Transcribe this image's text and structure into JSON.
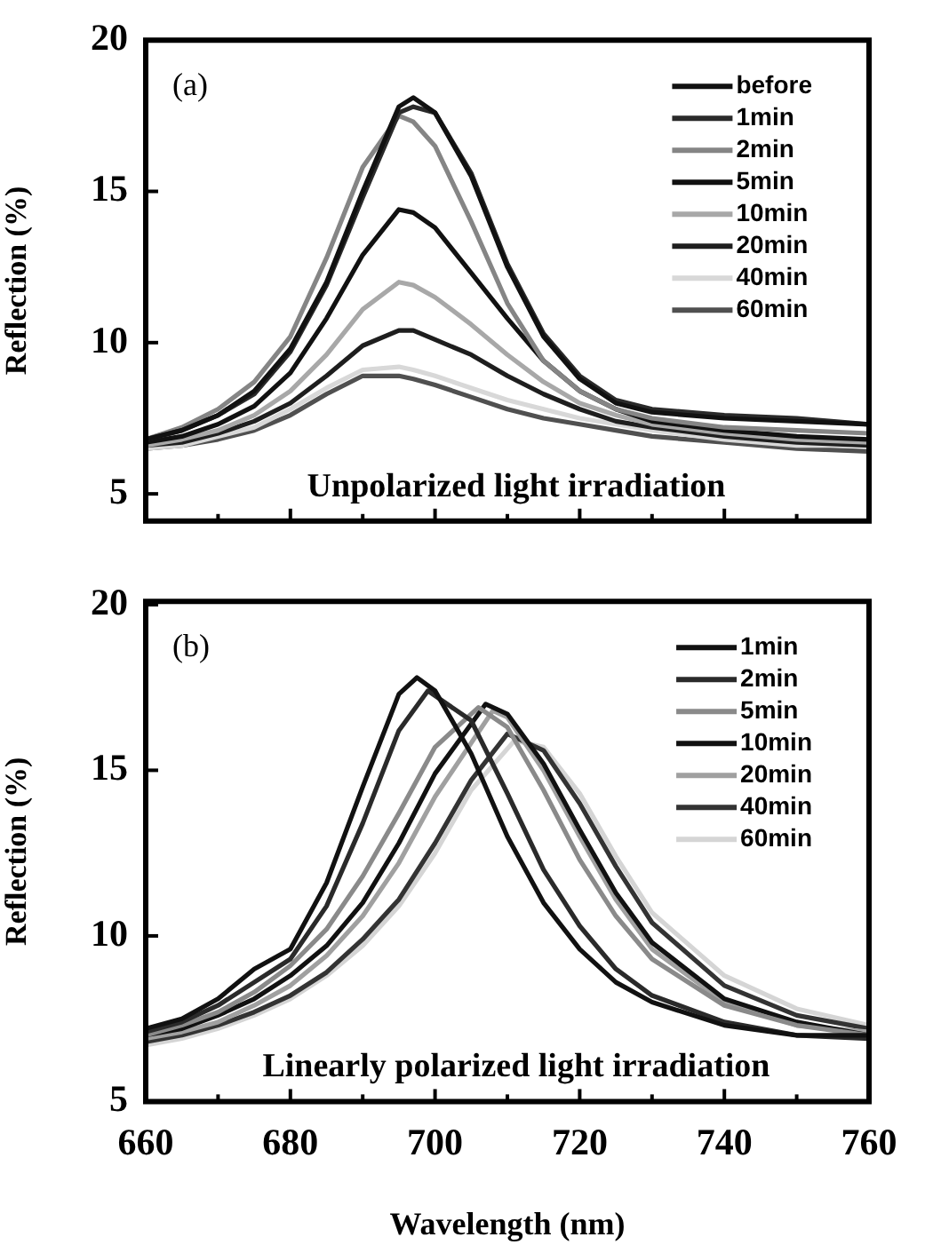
{
  "chart_data": [
    {
      "type": "line",
      "ylabel": "Reflection (%)",
      "annotations": [
        "(a)",
        "Unpolarized light irradiation"
      ],
      "xlim": [
        660,
        760
      ],
      "xticks": [
        660,
        {
          "value": 670,
          "label": null
        },
        680,
        {
          "value": 690,
          "label": null
        },
        700,
        {
          "value": 710,
          "label": null
        },
        720,
        {
          "value": 730,
          "label": null
        },
        740,
        {
          "value": 750,
          "label": null
        },
        760
      ],
      "ylim": [
        4.1,
        20
      ],
      "yticks": [
        5,
        10,
        15,
        20
      ],
      "tick_labels": "y",
      "legend": "top right",
      "grid": false,
      "marker": "none",
      "line_style": "solid",
      "x": [
        660,
        665,
        670,
        675,
        680,
        685,
        690,
        695,
        697,
        700,
        705,
        710,
        715,
        720,
        725,
        730,
        740,
        750,
        760
      ],
      "series": [
        {
          "name": "before",
          "color": "#111111",
          "values": [
            6.8,
            7.1,
            7.6,
            8.4,
            9.8,
            12.0,
            15.0,
            17.8,
            18.1,
            17.6,
            15.5,
            12.5,
            10.2,
            8.8,
            8.0,
            7.7,
            7.5,
            7.4,
            7.3
          ]
        },
        {
          "name": "1min",
          "color": "#2a2a2a",
          "values": [
            6.8,
            7.1,
            7.6,
            8.3,
            9.7,
            11.9,
            14.8,
            17.6,
            17.8,
            17.6,
            15.6,
            12.6,
            10.3,
            8.9,
            8.1,
            7.8,
            7.6,
            7.5,
            7.3
          ]
        },
        {
          "name": "2min",
          "color": "#858585",
          "values": [
            6.8,
            7.2,
            7.8,
            8.7,
            10.2,
            12.8,
            15.8,
            17.5,
            17.3,
            16.5,
            14.0,
            11.3,
            9.4,
            8.4,
            7.8,
            7.5,
            7.2,
            7.1,
            7.0
          ]
        },
        {
          "name": "5min",
          "color": "#111111",
          "values": [
            6.7,
            6.9,
            7.3,
            7.9,
            9.0,
            10.8,
            12.9,
            14.4,
            14.3,
            13.8,
            12.3,
            10.8,
            9.4,
            8.4,
            7.8,
            7.4,
            7.1,
            6.9,
            6.8
          ]
        },
        {
          "name": "10min",
          "color": "#a8a8a8",
          "values": [
            6.6,
            6.8,
            7.1,
            7.6,
            8.4,
            9.6,
            11.1,
            12.0,
            11.9,
            11.5,
            10.6,
            9.6,
            8.7,
            8.0,
            7.6,
            7.3,
            7.0,
            6.8,
            6.7
          ]
        },
        {
          "name": "20min",
          "color": "#1e1e1e",
          "values": [
            6.6,
            6.7,
            7.0,
            7.4,
            8.0,
            8.9,
            9.9,
            10.4,
            10.4,
            10.1,
            9.6,
            8.9,
            8.3,
            7.8,
            7.4,
            7.2,
            6.9,
            6.7,
            6.6
          ]
        },
        {
          "name": "40min",
          "color": "#d8d8d8",
          "values": [
            6.5,
            6.6,
            6.9,
            7.2,
            7.8,
            8.5,
            9.1,
            9.2,
            9.1,
            8.9,
            8.5,
            8.1,
            7.8,
            7.5,
            7.3,
            7.1,
            6.8,
            6.6,
            6.6
          ]
        },
        {
          "name": "60min",
          "color": "#505050",
          "values": [
            6.5,
            6.6,
            6.8,
            7.1,
            7.6,
            8.3,
            8.9,
            8.9,
            8.8,
            8.6,
            8.2,
            7.8,
            7.5,
            7.3,
            7.1,
            6.9,
            6.7,
            6.5,
            6.4
          ]
        }
      ]
    },
    {
      "type": "line",
      "xlabel": "Wavelength (nm)",
      "ylabel": "Reflection (%)",
      "annotations": [
        "(b)",
        "Linearly polarized light irradiation"
      ],
      "xlim": [
        660,
        760
      ],
      "xticks": [
        660,
        {
          "value": 670,
          "label": null
        },
        680,
        {
          "value": 690,
          "label": null
        },
        700,
        {
          "value": 710,
          "label": null
        },
        720,
        {
          "value": 730,
          "label": null
        },
        740,
        {
          "value": 750,
          "label": null
        },
        760
      ],
      "ylim": [
        5,
        20.1
      ],
      "yticks": [
        5,
        10,
        15,
        20
      ],
      "legend": "top right",
      "grid": false,
      "marker": "none",
      "line_style": "solid",
      "series": [
        {
          "name": "1min",
          "color": "#111111",
          "x": [
            660,
            665,
            670,
            675,
            680,
            685,
            690,
            695,
            697.5,
            700,
            705,
            710,
            715,
            720,
            725,
            730,
            740,
            750,
            760
          ],
          "values": [
            7.2,
            7.5,
            8.1,
            9.0,
            9.6,
            11.6,
            14.5,
            17.3,
            17.8,
            17.4,
            15.5,
            13.0,
            11.0,
            9.6,
            8.6,
            8.0,
            7.3,
            7.0,
            7.0
          ]
        },
        {
          "name": "2min",
          "color": "#2a2a2a",
          "x": [
            660,
            665,
            670,
            675,
            680,
            685,
            690,
            695,
            699,
            705,
            710,
            715,
            720,
            725,
            730,
            740,
            750,
            760
          ],
          "values": [
            7.1,
            7.4,
            7.9,
            8.6,
            9.3,
            10.9,
            13.4,
            16.2,
            17.4,
            16.5,
            14.3,
            12.0,
            10.3,
            9.0,
            8.2,
            7.4,
            7.0,
            6.9
          ]
        },
        {
          "name": "5min",
          "color": "#8a8a8a",
          "x": [
            660,
            665,
            670,
            675,
            680,
            685,
            690,
            695,
            700,
            706,
            710,
            715,
            720,
            725,
            730,
            740,
            750,
            760
          ],
          "values": [
            7.0,
            7.3,
            7.7,
            8.3,
            9.1,
            10.2,
            11.8,
            13.7,
            15.7,
            16.9,
            16.3,
            14.4,
            12.3,
            10.6,
            9.3,
            7.9,
            7.3,
            7.0
          ]
        },
        {
          "name": "10min",
          "color": "#111111",
          "x": [
            660,
            665,
            670,
            675,
            680,
            685,
            690,
            695,
            700,
            707,
            710,
            715,
            720,
            725,
            730,
            740,
            750,
            760
          ],
          "values": [
            7.0,
            7.2,
            7.6,
            8.1,
            8.8,
            9.7,
            11.0,
            12.8,
            14.9,
            17.0,
            16.7,
            15.2,
            13.2,
            11.3,
            9.8,
            8.1,
            7.4,
            7.0
          ]
        },
        {
          "name": "20min",
          "color": "#a0a0a0",
          "x": [
            660,
            665,
            670,
            675,
            680,
            685,
            690,
            695,
            700,
            708,
            710,
            715,
            720,
            725,
            730,
            740,
            750,
            760
          ],
          "values": [
            6.9,
            7.1,
            7.4,
            7.9,
            8.5,
            9.4,
            10.6,
            12.2,
            14.2,
            16.8,
            16.6,
            15.0,
            13.0,
            11.1,
            9.6,
            8.0,
            7.3,
            7.1
          ]
        },
        {
          "name": "40min",
          "color": "#333333",
          "x": [
            660,
            665,
            670,
            675,
            680,
            685,
            690,
            695,
            700,
            705,
            710,
            715,
            720,
            725,
            730,
            740,
            750,
            760
          ],
          "values": [
            6.8,
            7.0,
            7.3,
            7.7,
            8.2,
            8.9,
            9.9,
            11.1,
            12.8,
            14.7,
            16.1,
            15.6,
            14.0,
            12.1,
            10.4,
            8.5,
            7.6,
            7.2
          ]
        },
        {
          "name": "60min",
          "color": "#d5d5d5",
          "x": [
            660,
            665,
            670,
            675,
            680,
            685,
            690,
            695,
            700,
            705,
            711,
            715,
            720,
            725,
            730,
            740,
            750,
            760
          ],
          "values": [
            6.7,
            6.9,
            7.2,
            7.6,
            8.1,
            8.8,
            9.7,
            10.9,
            12.5,
            14.4,
            15.9,
            15.7,
            14.3,
            12.4,
            10.7,
            8.8,
            7.8,
            7.3
          ]
        }
      ]
    }
  ]
}
